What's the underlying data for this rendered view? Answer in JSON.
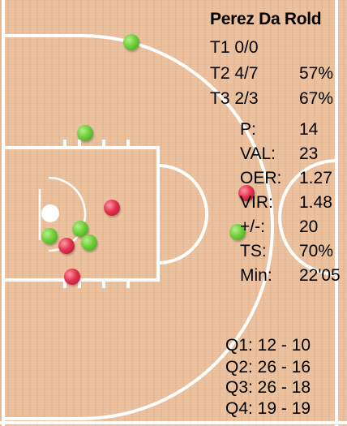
{
  "player": {
    "name": "Perez Da Rold"
  },
  "shooting": [
    {
      "label": "T1 0/0",
      "pct": ""
    },
    {
      "label": "T2 4/7",
      "pct": "57%"
    },
    {
      "label": "T3 2/3",
      "pct": "67%"
    }
  ],
  "stats": [
    {
      "label": "P:",
      "value": "14"
    },
    {
      "label": "VAL:",
      "value": "23"
    },
    {
      "label": "OER:",
      "value": "1.27"
    },
    {
      "label": "VIR:",
      "value": "1.48"
    },
    {
      "label": "+/-:",
      "value": "20"
    },
    {
      "label": "TS:",
      "value": "70%"
    },
    {
      "label": "Min:",
      "value": "22'05"
    }
  ],
  "quarters": [
    {
      "label": "Q1: 12 - 10"
    },
    {
      "label": "Q2: 26 - 16"
    },
    {
      "label": "Q3: 26 - 18"
    },
    {
      "label": "Q4: 19 - 19"
    }
  ],
  "shots": [
    {
      "result": "made"
    },
    {
      "result": "made"
    },
    {
      "result": "missed"
    },
    {
      "result": "missed"
    },
    {
      "result": "made"
    },
    {
      "result": "made"
    },
    {
      "result": "missed"
    },
    {
      "result": "made"
    },
    {
      "result": "made"
    },
    {
      "result": "missed"
    }
  ],
  "colors": {
    "court": "#e9bc97",
    "lines": "#ffffff",
    "made": "#6fce3a",
    "missed": "#e2324d",
    "text": "#111111"
  }
}
